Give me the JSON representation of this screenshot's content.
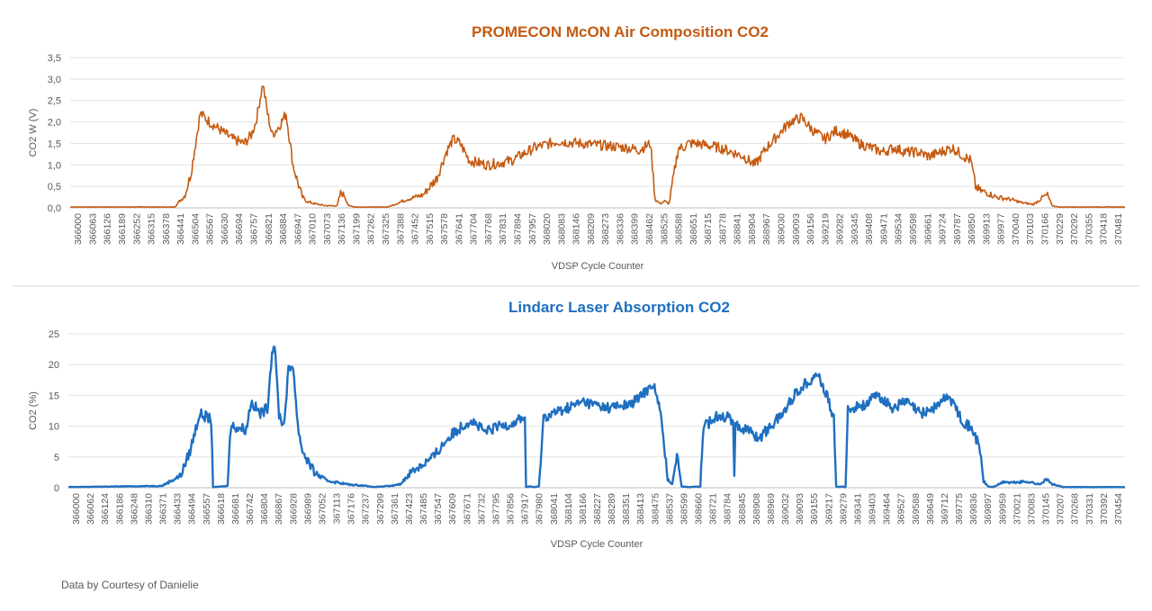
{
  "chart_data": [
    {
      "type": "line",
      "title": "PROMECON McON Air Composition CO2",
      "xlabel": "VDSP Cycle Counter",
      "ylabel": "CO2 W (V)",
      "ylim": [
        0,
        3.5
      ],
      "yticks": [
        "0,0",
        "0,5",
        "1,0",
        "1,5",
        "2,0",
        "2,5",
        "3,0",
        "3,5"
      ],
      "grid": true,
      "color": "#c55a11",
      "xlim": [
        366000,
        370544
      ],
      "xticks": [
        "366000",
        "366063",
        "366126",
        "366189",
        "366252",
        "366315",
        "366378",
        "366441",
        "366504",
        "366567",
        "366630",
        "366694",
        "366757",
        "366821",
        "366884",
        "366947",
        "367010",
        "367073",
        "367136",
        "367199",
        "367262",
        "367325",
        "367388",
        "367452",
        "367515",
        "367578",
        "367641",
        "367704",
        "367768",
        "367831",
        "367894",
        "367957",
        "368020",
        "368083",
        "368146",
        "368209",
        "368273",
        "368336",
        "368399",
        "368462",
        "368525",
        "368588",
        "368651",
        "368715",
        "368778",
        "368841",
        "368904",
        "368967",
        "369030",
        "369093",
        "369156",
        "369219",
        "369282",
        "369345",
        "369408",
        "369471",
        "369534",
        "369598",
        "369661",
        "369724",
        "369787",
        "369850",
        "369913",
        "369977",
        "370040",
        "370103",
        "370166",
        "370229",
        "370292",
        "370355",
        "370418",
        "370481"
      ],
      "x": [
        366000,
        366450,
        366495,
        366520,
        366540,
        366560,
        366600,
        366650,
        366700,
        366750,
        366780,
        366800,
        366830,
        366850,
        366870,
        366900,
        366930,
        366960,
        366980,
        367000,
        367020,
        367050,
        367100,
        367150,
        367165,
        367180,
        367200,
        367230,
        367300,
        367370,
        367450,
        367520,
        367580,
        367620,
        367650,
        367680,
        367720,
        367800,
        367900,
        368000,
        368100,
        368200,
        368300,
        368400,
        368450,
        368500,
        368520,
        368540,
        368560,
        368580,
        368620,
        368640,
        368660,
        368700,
        368800,
        368900,
        368950,
        369000,
        369050,
        369100,
        369150,
        369200,
        369250,
        369300,
        369350,
        369400,
        369450,
        369500,
        369550,
        369600,
        369650,
        369700,
        369750,
        369800,
        369850,
        369880,
        369900,
        369920,
        369950,
        369990,
        370050,
        370100,
        370150,
        370190,
        370210,
        370230,
        370260,
        370544
      ],
      "y": [
        0.02,
        0.02,
        0.3,
        0.8,
        1.5,
        2.2,
        2.0,
        1.8,
        1.6,
        1.5,
        1.7,
        2.0,
        2.9,
        2.2,
        1.7,
        1.9,
        2.2,
        1.0,
        0.6,
        0.25,
        0.15,
        0.1,
        0.05,
        0.05,
        0.35,
        0.3,
        0.05,
        0.02,
        0.02,
        0.02,
        0.2,
        0.3,
        0.7,
        1.3,
        1.6,
        1.5,
        1.1,
        1.0,
        1.1,
        1.4,
        1.55,
        1.5,
        1.45,
        1.4,
        1.35,
        1.5,
        0.2,
        0.1,
        0.15,
        0.1,
        1.4,
        1.4,
        1.5,
        1.5,
        1.4,
        1.2,
        1.0,
        1.4,
        1.7,
        2.0,
        2.1,
        1.8,
        1.6,
        1.8,
        1.7,
        1.5,
        1.4,
        1.3,
        1.4,
        1.3,
        1.3,
        1.2,
        1.3,
        1.4,
        1.2,
        1.1,
        0.5,
        0.4,
        0.35,
        0.25,
        0.2,
        0.12,
        0.08,
        0.25,
        0.3,
        0.05,
        0.02,
        0.02
      ]
    },
    {
      "type": "line",
      "title": "Lindarc Laser Absorption CO2",
      "xlabel": "VDSP Cycle Counter",
      "ylabel": "CO2  (%)",
      "ylim": [
        0,
        25
      ],
      "yticks": [
        "0",
        "5",
        "10",
        "15",
        "20",
        "25"
      ],
      "grid": true,
      "color": "#1f6fc0",
      "xlim": [
        366000,
        370514
      ],
      "xticks": [
        "366000",
        "366062",
        "366124",
        "366186",
        "366248",
        "366310",
        "366371",
        "366433",
        "366494",
        "366557",
        "366618",
        "366681",
        "366742",
        "366804",
        "366867",
        "366928",
        "366989",
        "367052",
        "367113",
        "367176",
        "367237",
        "367299",
        "367361",
        "367423",
        "367485",
        "367547",
        "367609",
        "367671",
        "367732",
        "367795",
        "367856",
        "367917",
        "367980",
        "368041",
        "368104",
        "368166",
        "368227",
        "368289",
        "368351",
        "368413",
        "368475",
        "368537",
        "368599",
        "368660",
        "368721",
        "368784",
        "368845",
        "368908",
        "368969",
        "369032",
        "369093",
        "369155",
        "369217",
        "369279",
        "369341",
        "369403",
        "369464",
        "369527",
        "369588",
        "369649",
        "369712",
        "369775",
        "369836",
        "369897",
        "369959",
        "370021",
        "370083",
        "370145",
        "370207",
        "370268",
        "370331",
        "370392",
        "370454"
      ],
      "x": [
        366000,
        366400,
        366480,
        366520,
        366560,
        366590,
        366610,
        366618,
        366625,
        366680,
        366690,
        366700,
        366760,
        366780,
        366820,
        366850,
        366870,
        366880,
        366900,
        366920,
        366940,
        366960,
        366980,
        367000,
        367050,
        367100,
        367200,
        367280,
        367300,
        367380,
        367420,
        367460,
        367500,
        367560,
        367620,
        367680,
        367720,
        367780,
        367840,
        367900,
        367940,
        367950,
        367955,
        367970,
        367990,
        368010,
        368030,
        368100,
        368200,
        368300,
        368400,
        368450,
        368500,
        368530,
        368560,
        368580,
        368600,
        368620,
        368650,
        368700,
        368710,
        368720,
        368780,
        368840,
        368845,
        368850,
        368900,
        368950,
        369000,
        369050,
        369100,
        369150,
        369200,
        369250,
        369270,
        369280,
        369290,
        369300,
        369320,
        369330,
        369345,
        369400,
        369460,
        369520,
        369580,
        369640,
        369700,
        369760,
        369820,
        369870,
        369895,
        369910,
        369930,
        369950,
        370000,
        370020,
        370100,
        370150,
        370175,
        370200,
        370250,
        370514
      ],
      "y": [
        0.1,
        0.3,
        2.0,
        6.0,
        12.0,
        11.5,
        11.0,
        0.1,
        0.1,
        0.3,
        9.0,
        10.0,
        9.5,
        14.0,
        12.0,
        13.0,
        22.0,
        23.5,
        12.0,
        10.0,
        19.0,
        20.0,
        10.0,
        6.0,
        2.5,
        1.2,
        0.5,
        0.3,
        0.1,
        0.3,
        0.6,
        2.5,
        3.5,
        5.0,
        8.0,
        10.0,
        11.0,
        9.0,
        10.0,
        10.5,
        11.5,
        11.0,
        0.1,
        0.2,
        0.1,
        0.2,
        11.5,
        12.5,
        14.0,
        13.0,
        13.5,
        15.0,
        17.0,
        12.0,
        1.5,
        0.5,
        6.0,
        0.2,
        0.1,
        0.2,
        8.5,
        10.0,
        12.0,
        11.0,
        2.5,
        10.0,
        9.5,
        8.0,
        10.0,
        12.0,
        15.0,
        17.0,
        18.5,
        14.0,
        11.0,
        0.2,
        0.1,
        0.2,
        0.1,
        12.5,
        13.0,
        13.5,
        15.0,
        13.0,
        14.0,
        12.0,
        13.0,
        15.0,
        11.0,
        9.0,
        6.0,
        1.0,
        0.2,
        0.1,
        1.0,
        0.8,
        1.0,
        0.5,
        1.5,
        0.6,
        0.1,
        0.1
      ]
    }
  ],
  "footer": {
    "credit": "Data by Courtesy of Danielie"
  }
}
